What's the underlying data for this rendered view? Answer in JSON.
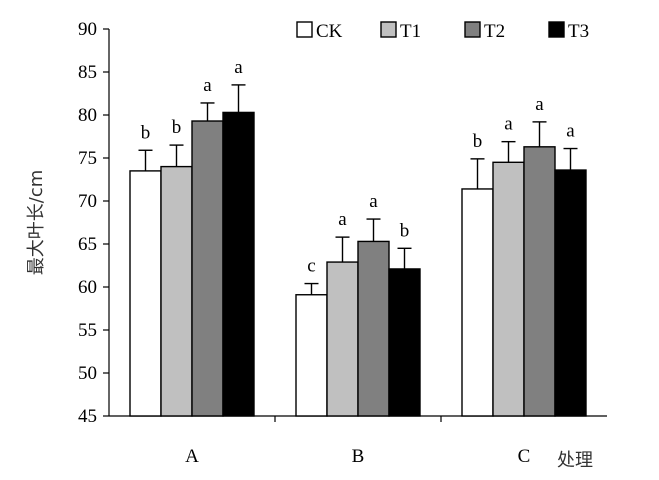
{
  "chart_data": {
    "type": "bar",
    "categories": [
      "A",
      "B",
      "C"
    ],
    "xlabel": "处理",
    "ylabel": "最大叶长/cm",
    "ylim": [
      45,
      90
    ],
    "yticks": [
      45,
      50,
      55,
      60,
      65,
      70,
      75,
      80,
      85,
      90
    ],
    "grid": false,
    "legend_position": "top-right",
    "series": [
      {
        "name": "CK",
        "color": "#ffffff",
        "values": [
          73.5,
          59.1,
          71.4
        ],
        "errors": [
          2.4,
          1.3,
          3.5
        ],
        "significance": [
          "b",
          "c",
          "b"
        ]
      },
      {
        "name": "T1",
        "color": "#c0c0c0",
        "values": [
          74.0,
          62.9,
          74.5
        ],
        "errors": [
          2.5,
          2.9,
          2.4
        ],
        "significance": [
          "b",
          "a",
          "a"
        ]
      },
      {
        "name": "T2",
        "color": "#808080",
        "values": [
          79.3,
          65.3,
          76.3
        ],
        "errors": [
          2.1,
          2.6,
          2.9
        ],
        "significance": [
          "a",
          "a",
          "a"
        ]
      },
      {
        "name": "T3",
        "color": "#000000",
        "values": [
          80.3,
          62.1,
          73.6
        ],
        "errors": [
          3.2,
          2.4,
          2.5
        ],
        "significance": [
          "a",
          "b",
          "a"
        ]
      }
    ]
  }
}
